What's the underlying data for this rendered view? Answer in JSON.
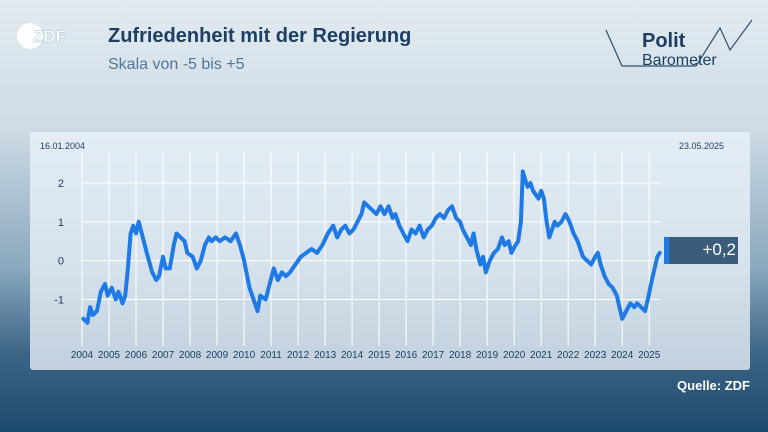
{
  "header": {
    "logo_text": "ZDF",
    "title": "Zufriedenheit mit der Regierung",
    "subtitle": "Skala von -5 bis +5"
  },
  "brand": {
    "line1": "Polit",
    "line2": "Barometer"
  },
  "footer": {
    "source": "Quelle: ZDF"
  },
  "chart_data": {
    "type": "line",
    "title": "Zufriedenheit mit der Regierung",
    "subtitle": "Skala von -5 bis +5",
    "start_label": "16.01.2004",
    "end_label": "23.05.2025",
    "end_value_label": "+0,2",
    "xlim": [
      2004.0,
      2025.4
    ],
    "ylim": [
      -2.2,
      2.8
    ],
    "yticks": [
      2,
      1,
      0,
      -1
    ],
    "ytick_labels": [
      "2",
      "1",
      "0",
      "-1"
    ],
    "xticks": [
      "2004",
      "2005",
      "2006",
      "2007",
      "2008",
      "2009",
      "2010",
      "2011",
      "2012",
      "2013",
      "2014",
      "2015",
      "2016",
      "2017",
      "2018",
      "2019",
      "2020",
      "2021",
      "2022",
      "2023",
      "2024",
      "2025"
    ],
    "grid": true,
    "line_color": "#1f7ae6",
    "series": [
      {
        "name": "",
        "points": [
          [
            2004.05,
            -1.5
          ],
          [
            2004.2,
            -1.6
          ],
          [
            2004.3,
            -1.2
          ],
          [
            2004.4,
            -1.4
          ],
          [
            2004.55,
            -1.3
          ],
          [
            2004.7,
            -0.8
          ],
          [
            2004.85,
            -0.6
          ],
          [
            2004.95,
            -0.9
          ],
          [
            2005.1,
            -0.7
          ],
          [
            2005.25,
            -1.0
          ],
          [
            2005.35,
            -0.8
          ],
          [
            2005.5,
            -1.1
          ],
          [
            2005.6,
            -0.9
          ],
          [
            2005.7,
            -0.2
          ],
          [
            2005.8,
            0.7
          ],
          [
            2005.9,
            0.9
          ],
          [
            2006.0,
            0.7
          ],
          [
            2006.1,
            1.0
          ],
          [
            2006.25,
            0.6
          ],
          [
            2006.4,
            0.2
          ],
          [
            2006.6,
            -0.3
          ],
          [
            2006.75,
            -0.5
          ],
          [
            2006.85,
            -0.4
          ],
          [
            2007.0,
            0.1
          ],
          [
            2007.1,
            -0.2
          ],
          [
            2007.25,
            -0.2
          ],
          [
            2007.4,
            0.4
          ],
          [
            2007.5,
            0.7
          ],
          [
            2007.65,
            0.6
          ],
          [
            2007.8,
            0.5
          ],
          [
            2007.9,
            0.2
          ],
          [
            2008.1,
            0.1
          ],
          [
            2008.25,
            -0.2
          ],
          [
            2008.4,
            0.0
          ],
          [
            2008.55,
            0.4
          ],
          [
            2008.7,
            0.6
          ],
          [
            2008.8,
            0.5
          ],
          [
            2008.95,
            0.6
          ],
          [
            2009.1,
            0.5
          ],
          [
            2009.3,
            0.6
          ],
          [
            2009.5,
            0.5
          ],
          [
            2009.7,
            0.7
          ],
          [
            2009.85,
            0.4
          ],
          [
            2010.0,
            0.0
          ],
          [
            2010.2,
            -0.7
          ],
          [
            2010.4,
            -1.1
          ],
          [
            2010.5,
            -1.3
          ],
          [
            2010.6,
            -0.9
          ],
          [
            2010.8,
            -1.0
          ],
          [
            2010.95,
            -0.6
          ],
          [
            2011.1,
            -0.2
          ],
          [
            2011.25,
            -0.5
          ],
          [
            2011.4,
            -0.3
          ],
          [
            2011.55,
            -0.4
          ],
          [
            2011.7,
            -0.3
          ],
          [
            2011.9,
            -0.1
          ],
          [
            2012.1,
            0.1
          ],
          [
            2012.3,
            0.2
          ],
          [
            2012.5,
            0.3
          ],
          [
            2012.7,
            0.2
          ],
          [
            2012.9,
            0.4
          ],
          [
            2013.1,
            0.7
          ],
          [
            2013.3,
            0.9
          ],
          [
            2013.45,
            0.6
          ],
          [
            2013.6,
            0.8
          ],
          [
            2013.75,
            0.9
          ],
          [
            2013.9,
            0.7
          ],
          [
            2014.05,
            0.8
          ],
          [
            2014.2,
            1.0
          ],
          [
            2014.35,
            1.2
          ],
          [
            2014.45,
            1.5
          ],
          [
            2014.6,
            1.4
          ],
          [
            2014.75,
            1.3
          ],
          [
            2014.9,
            1.2
          ],
          [
            2015.05,
            1.4
          ],
          [
            2015.2,
            1.2
          ],
          [
            2015.35,
            1.4
          ],
          [
            2015.5,
            1.1
          ],
          [
            2015.6,
            1.2
          ],
          [
            2015.75,
            0.9
          ],
          [
            2015.9,
            0.7
          ],
          [
            2016.05,
            0.5
          ],
          [
            2016.2,
            0.8
          ],
          [
            2016.35,
            0.7
          ],
          [
            2016.5,
            0.9
          ],
          [
            2016.65,
            0.6
          ],
          [
            2016.8,
            0.8
          ],
          [
            2016.95,
            0.9
          ],
          [
            2017.1,
            1.1
          ],
          [
            2017.25,
            1.2
          ],
          [
            2017.4,
            1.1
          ],
          [
            2017.55,
            1.3
          ],
          [
            2017.7,
            1.4
          ],
          [
            2017.85,
            1.1
          ],
          [
            2018.0,
            1.0
          ],
          [
            2018.1,
            0.8
          ],
          [
            2018.25,
            0.6
          ],
          [
            2018.4,
            0.4
          ],
          [
            2018.5,
            0.7
          ],
          [
            2018.6,
            0.3
          ],
          [
            2018.75,
            -0.1
          ],
          [
            2018.85,
            0.1
          ],
          [
            2018.95,
            -0.3
          ],
          [
            2019.1,
            0.0
          ],
          [
            2019.25,
            0.2
          ],
          [
            2019.4,
            0.3
          ],
          [
            2019.55,
            0.6
          ],
          [
            2019.65,
            0.4
          ],
          [
            2019.8,
            0.5
          ],
          [
            2019.9,
            0.2
          ],
          [
            2020.05,
            0.4
          ],
          [
            2020.15,
            0.5
          ],
          [
            2020.25,
            1.0
          ],
          [
            2020.32,
            2.3
          ],
          [
            2020.4,
            2.1
          ],
          [
            2020.5,
            1.9
          ],
          [
            2020.6,
            2.0
          ],
          [
            2020.7,
            1.8
          ],
          [
            2020.8,
            1.7
          ],
          [
            2020.9,
            1.6
          ],
          [
            2021.0,
            1.8
          ],
          [
            2021.1,
            1.6
          ],
          [
            2021.2,
            1.0
          ],
          [
            2021.3,
            0.6
          ],
          [
            2021.4,
            0.8
          ],
          [
            2021.5,
            1.0
          ],
          [
            2021.6,
            0.9
          ],
          [
            2021.75,
            1.0
          ],
          [
            2021.9,
            1.2
          ],
          [
            2022.05,
            1.0
          ],
          [
            2022.2,
            0.7
          ],
          [
            2022.35,
            0.5
          ],
          [
            2022.45,
            0.3
          ],
          [
            2022.55,
            0.1
          ],
          [
            2022.7,
            0.0
          ],
          [
            2022.85,
            -0.1
          ],
          [
            2023.0,
            0.1
          ],
          [
            2023.1,
            0.2
          ],
          [
            2023.2,
            -0.1
          ],
          [
            2023.35,
            -0.4
          ],
          [
            2023.5,
            -0.6
          ],
          [
            2023.65,
            -0.7
          ],
          [
            2023.8,
            -0.9
          ],
          [
            2023.9,
            -1.2
          ],
          [
            2024.0,
            -1.5
          ],
          [
            2024.15,
            -1.3
          ],
          [
            2024.3,
            -1.1
          ],
          [
            2024.45,
            -1.2
          ],
          [
            2024.55,
            -1.1
          ],
          [
            2024.7,
            -1.2
          ],
          [
            2024.85,
            -1.3
          ],
          [
            2024.95,
            -1.0
          ],
          [
            2025.1,
            -0.5
          ],
          [
            2025.2,
            -0.2
          ],
          [
            2025.3,
            0.1
          ],
          [
            2025.39,
            0.2
          ]
        ]
      }
    ]
  }
}
